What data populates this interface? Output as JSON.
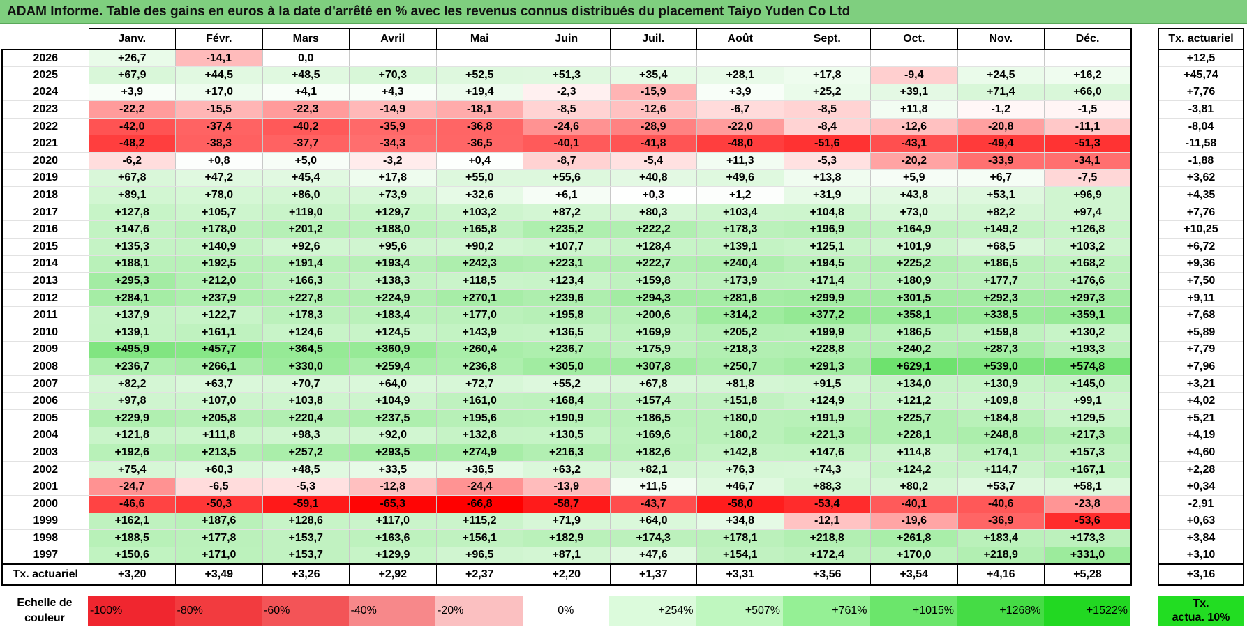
{
  "title": "ADAM Informe. Table des gains en euros à la date d'arrêté en % avec les revenus connus distribués du placement Taiyo Yuden Co Ltd",
  "months": [
    "Janv.",
    "Févr.",
    "Mars",
    "Avril",
    "Mai",
    "Juin",
    "Juil.",
    "Août",
    "Sept.",
    "Oct.",
    "Nov.",
    "Déc."
  ],
  "side_header": "Tx. actuariel",
  "rows": [
    {
      "year": "2026",
      "values": [
        "+26,7",
        "-14,1",
        "0,0",
        "",
        "",
        "",
        "",
        "",
        "",
        "",
        "",
        ""
      ],
      "rate": "+12,5"
    },
    {
      "year": "2025",
      "values": [
        "+67,9",
        "+44,5",
        "+48,5",
        "+70,3",
        "+52,5",
        "+51,3",
        "+35,4",
        "+28,1",
        "+17,8",
        "-9,4",
        "+24,5",
        "+16,2"
      ],
      "rate": "+45,74"
    },
    {
      "year": "2024",
      "values": [
        "+3,9",
        "+17,0",
        "+4,1",
        "+4,3",
        "+19,4",
        "-2,3",
        "-15,9",
        "+3,9",
        "+25,2",
        "+39,1",
        "+71,4",
        "+66,0"
      ],
      "rate": "+7,76"
    },
    {
      "year": "2023",
      "values": [
        "-22,2",
        "-15,5",
        "-22,3",
        "-14,9",
        "-18,1",
        "-8,5",
        "-12,6",
        "-6,7",
        "-8,5",
        "+11,8",
        "-1,2",
        "-1,5"
      ],
      "rate": "-3,81"
    },
    {
      "year": "2022",
      "values": [
        "-42,0",
        "-37,4",
        "-40,2",
        "-35,9",
        "-36,8",
        "-24,6",
        "-28,9",
        "-22,0",
        "-8,4",
        "-12,6",
        "-20,8",
        "-11,1"
      ],
      "rate": "-8,04"
    },
    {
      "year": "2021",
      "values": [
        "-48,2",
        "-38,3",
        "-37,7",
        "-34,3",
        "-36,5",
        "-40,1",
        "-41,8",
        "-48,0",
        "-51,6",
        "-43,1",
        "-49,4",
        "-51,3"
      ],
      "rate": "-11,58"
    },
    {
      "year": "2020",
      "values": [
        "-6,2",
        "+0,8",
        "+5,0",
        "-3,2",
        "+0,4",
        "-8,7",
        "-5,4",
        "+11,3",
        "-5,3",
        "-20,2",
        "-33,9",
        "-34,1"
      ],
      "rate": "-1,88"
    },
    {
      "year": "2019",
      "values": [
        "+67,8",
        "+47,2",
        "+45,4",
        "+17,8",
        "+55,0",
        "+55,6",
        "+40,8",
        "+49,6",
        "+13,8",
        "+5,9",
        "+6,7",
        "-7,5"
      ],
      "rate": "+3,62"
    },
    {
      "year": "2018",
      "values": [
        "+89,1",
        "+78,0",
        "+86,0",
        "+73,9",
        "+32,6",
        "+6,1",
        "+0,3",
        "+1,2",
        "+31,9",
        "+43,8",
        "+53,1",
        "+96,9"
      ],
      "rate": "+4,35"
    },
    {
      "year": "2017",
      "values": [
        "+127,8",
        "+105,7",
        "+119,0",
        "+129,7",
        "+103,2",
        "+87,2",
        "+80,3",
        "+103,4",
        "+104,8",
        "+73,0",
        "+82,2",
        "+97,4"
      ],
      "rate": "+7,76"
    },
    {
      "year": "2016",
      "values": [
        "+147,6",
        "+178,0",
        "+201,2",
        "+188,0",
        "+165,8",
        "+235,2",
        "+222,2",
        "+178,3",
        "+196,9",
        "+164,9",
        "+149,2",
        "+126,8"
      ],
      "rate": "+10,25"
    },
    {
      "year": "2015",
      "values": [
        "+135,3",
        "+140,9",
        "+92,6",
        "+95,6",
        "+90,2",
        "+107,7",
        "+128,4",
        "+139,1",
        "+125,1",
        "+101,9",
        "+68,5",
        "+103,2"
      ],
      "rate": "+6,72"
    },
    {
      "year": "2014",
      "values": [
        "+188,1",
        "+192,5",
        "+191,4",
        "+193,4",
        "+242,3",
        "+223,1",
        "+222,7",
        "+240,4",
        "+194,5",
        "+225,2",
        "+186,5",
        "+168,2"
      ],
      "rate": "+9,36"
    },
    {
      "year": "2013",
      "values": [
        "+295,3",
        "+212,0",
        "+166,3",
        "+138,3",
        "+118,5",
        "+123,4",
        "+159,8",
        "+173,9",
        "+171,4",
        "+180,9",
        "+177,7",
        "+176,6"
      ],
      "rate": "+7,50"
    },
    {
      "year": "2012",
      "values": [
        "+284,1",
        "+237,9",
        "+227,8",
        "+224,9",
        "+270,1",
        "+239,6",
        "+294,3",
        "+281,6",
        "+299,9",
        "+301,5",
        "+292,3",
        "+297,3"
      ],
      "rate": "+9,11"
    },
    {
      "year": "2011",
      "values": [
        "+137,9",
        "+122,7",
        "+178,3",
        "+183,4",
        "+177,0",
        "+195,8",
        "+200,6",
        "+314,2",
        "+377,2",
        "+358,1",
        "+338,5",
        "+359,1"
      ],
      "rate": "+7,68"
    },
    {
      "year": "2010",
      "values": [
        "+139,1",
        "+161,1",
        "+124,6",
        "+124,5",
        "+143,9",
        "+136,5",
        "+169,9",
        "+205,2",
        "+199,9",
        "+186,5",
        "+159,8",
        "+130,2"
      ],
      "rate": "+5,89"
    },
    {
      "year": "2009",
      "values": [
        "+495,9",
        "+457,7",
        "+364,5",
        "+360,9",
        "+260,4",
        "+236,7",
        "+175,9",
        "+218,3",
        "+228,8",
        "+240,2",
        "+287,3",
        "+193,3"
      ],
      "rate": "+7,79"
    },
    {
      "year": "2008",
      "values": [
        "+236,7",
        "+266,1",
        "+330,0",
        "+259,4",
        "+236,8",
        "+305,0",
        "+307,8",
        "+250,7",
        "+291,3",
        "+629,1",
        "+539,0",
        "+574,8"
      ],
      "rate": "+7,96"
    },
    {
      "year": "2007",
      "values": [
        "+82,2",
        "+63,7",
        "+70,7",
        "+64,0",
        "+72,7",
        "+55,2",
        "+67,8",
        "+81,8",
        "+91,5",
        "+134,0",
        "+130,9",
        "+145,0"
      ],
      "rate": "+3,21"
    },
    {
      "year": "2006",
      "values": [
        "+97,8",
        "+107,0",
        "+103,8",
        "+104,9",
        "+161,0",
        "+168,4",
        "+157,4",
        "+151,8",
        "+124,9",
        "+121,2",
        "+109,8",
        "+99,1"
      ],
      "rate": "+4,02"
    },
    {
      "year": "2005",
      "values": [
        "+229,9",
        "+205,8",
        "+220,4",
        "+237,5",
        "+195,6",
        "+190,9",
        "+186,5",
        "+180,0",
        "+191,9",
        "+225,7",
        "+184,8",
        "+129,5"
      ],
      "rate": "+5,21"
    },
    {
      "year": "2004",
      "values": [
        "+121,8",
        "+111,8",
        "+98,3",
        "+92,0",
        "+132,8",
        "+130,5",
        "+169,6",
        "+180,2",
        "+221,3",
        "+228,1",
        "+248,8",
        "+217,3"
      ],
      "rate": "+4,19"
    },
    {
      "year": "2003",
      "values": [
        "+192,6",
        "+213,5",
        "+257,2",
        "+293,5",
        "+274,9",
        "+216,3",
        "+182,6",
        "+142,8",
        "+147,6",
        "+114,8",
        "+174,1",
        "+157,3"
      ],
      "rate": "+4,60"
    },
    {
      "year": "2002",
      "values": [
        "+75,4",
        "+60,3",
        "+48,5",
        "+33,5",
        "+36,5",
        "+63,2",
        "+82,1",
        "+76,3",
        "+74,3",
        "+124,2",
        "+114,7",
        "+167,1"
      ],
      "rate": "+2,28"
    },
    {
      "year": "2001",
      "values": [
        "-24,7",
        "-6,5",
        "-5,3",
        "-12,8",
        "-24,4",
        "-13,9",
        "+11,5",
        "+46,7",
        "+88,3",
        "+80,2",
        "+53,7",
        "+58,1"
      ],
      "rate": "+0,34"
    },
    {
      "year": "2000",
      "values": [
        "-46,6",
        "-50,3",
        "-59,1",
        "-65,3",
        "-66,8",
        "-58,7",
        "-43,7",
        "-58,0",
        "-53,4",
        "-40,1",
        "-40,6",
        "-23,8"
      ],
      "rate": "-2,91"
    },
    {
      "year": "1999",
      "values": [
        "+162,1",
        "+187,6",
        "+128,6",
        "+117,0",
        "+115,2",
        "+71,9",
        "+64,0",
        "+34,8",
        "-12,1",
        "-19,6",
        "-36,9",
        "-53,6"
      ],
      "rate": "+0,63"
    },
    {
      "year": "1998",
      "values": [
        "+188,5",
        "+177,8",
        "+153,7",
        "+163,6",
        "+156,1",
        "+182,9",
        "+174,3",
        "+178,1",
        "+218,8",
        "+261,8",
        "+183,4",
        "+173,3"
      ],
      "rate": "+3,84"
    },
    {
      "year": "1997",
      "values": [
        "+150,6",
        "+171,0",
        "+153,7",
        "+129,9",
        "+96,5",
        "+87,1",
        "+47,6",
        "+154,1",
        "+172,4",
        "+170,0",
        "+218,9",
        "+331,0"
      ],
      "rate": "+3,10"
    }
  ],
  "footer": {
    "label": "Tx. actuariel",
    "values": [
      "+3,20",
      "+3,49",
      "+3,26",
      "+2,92",
      "+2,37",
      "+2,20",
      "+1,37",
      "+3,31",
      "+3,56",
      "+3,54",
      "+4,16",
      "+5,28"
    ],
    "rate": "+3,16"
  },
  "scale": {
    "label_line1": "Echelle de",
    "label_line2": "couleur",
    "items": [
      {
        "label": "-100%",
        "color": "#f0262f"
      },
      {
        "label": "-80%",
        "color": "#f23b3f"
      },
      {
        "label": "-60%",
        "color": "#f35457"
      },
      {
        "label": "-40%",
        "color": "#f7888a"
      },
      {
        "label": "-20%",
        "color": "#fbc0c1"
      },
      {
        "label": "0%",
        "color": "#ffffff"
      },
      {
        "label": "+254%",
        "color": "#dcfbdc"
      },
      {
        "label": "+507%",
        "color": "#bff7bf"
      },
      {
        "label": "+761%",
        "color": "#95f095"
      },
      {
        "label": "+1015%",
        "color": "#6be66b"
      },
      {
        "label": "+1268%",
        "color": "#45dc45"
      },
      {
        "label": "+1522%",
        "color": "#22d822"
      }
    ],
    "actuarial_line1": "Tx.",
    "actuarial_line2": "actua. 10%",
    "actuarial_color": "#22dd22"
  },
  "colors": {
    "title_bar": "#7fcf7f",
    "neg_max": "#ff0000",
    "pos_max": "#66e066"
  }
}
